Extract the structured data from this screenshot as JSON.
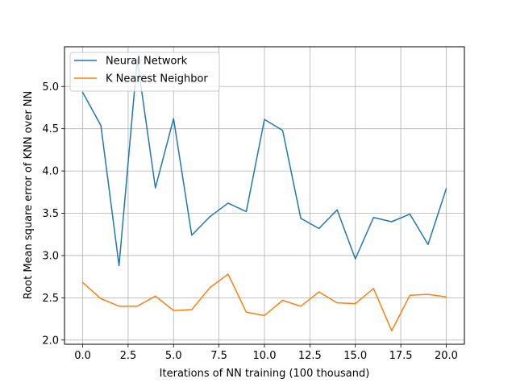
{
  "chart_data": {
    "type": "line",
    "title": "",
    "xlabel": "Iterations of NN training (100 thousand)",
    "ylabel": "Root Mean square error of KNN over NN",
    "x": [
      0,
      1,
      2,
      3,
      4,
      5,
      6,
      7,
      8,
      9,
      10,
      11,
      12,
      13,
      14,
      15,
      16,
      17,
      18,
      19,
      20
    ],
    "series": [
      {
        "name": "Neural Network",
        "color": "#1f77b4",
        "values": [
          4.93,
          4.54,
          2.88,
          5.32,
          3.8,
          4.62,
          3.24,
          3.46,
          3.62,
          3.52,
          4.61,
          4.48,
          3.44,
          3.32,
          3.54,
          2.96,
          3.45,
          3.4,
          3.49,
          3.13,
          3.79
        ]
      },
      {
        "name": "K Nearest Neighbor",
        "color": "#ff7f0e",
        "values": [
          2.68,
          2.49,
          2.4,
          2.4,
          2.52,
          2.35,
          2.36,
          2.62,
          2.78,
          2.33,
          2.29,
          2.47,
          2.4,
          2.57,
          2.44,
          2.43,
          2.61,
          2.11,
          2.53,
          2.54,
          2.51
        ]
      }
    ],
    "xlim": [
      -1.0,
      21.0
    ],
    "ylim": [
      1.95,
      5.47
    ],
    "xticks": [
      0,
      2.5,
      5,
      7.5,
      10,
      12.5,
      15,
      17.5,
      20
    ],
    "xtick_labels": [
      "0.0",
      "2.5",
      "5.0",
      "7.5",
      "10.0",
      "12.5",
      "15.0",
      "17.5",
      "20.0"
    ],
    "yticks": [
      2.0,
      2.5,
      3.0,
      3.5,
      4.0,
      4.5,
      5.0
    ],
    "ytick_labels": [
      "2.0",
      "2.5",
      "3.0",
      "3.5",
      "4.0",
      "4.5",
      "5.0"
    ],
    "grid": true,
    "legend_position": "top-left"
  }
}
